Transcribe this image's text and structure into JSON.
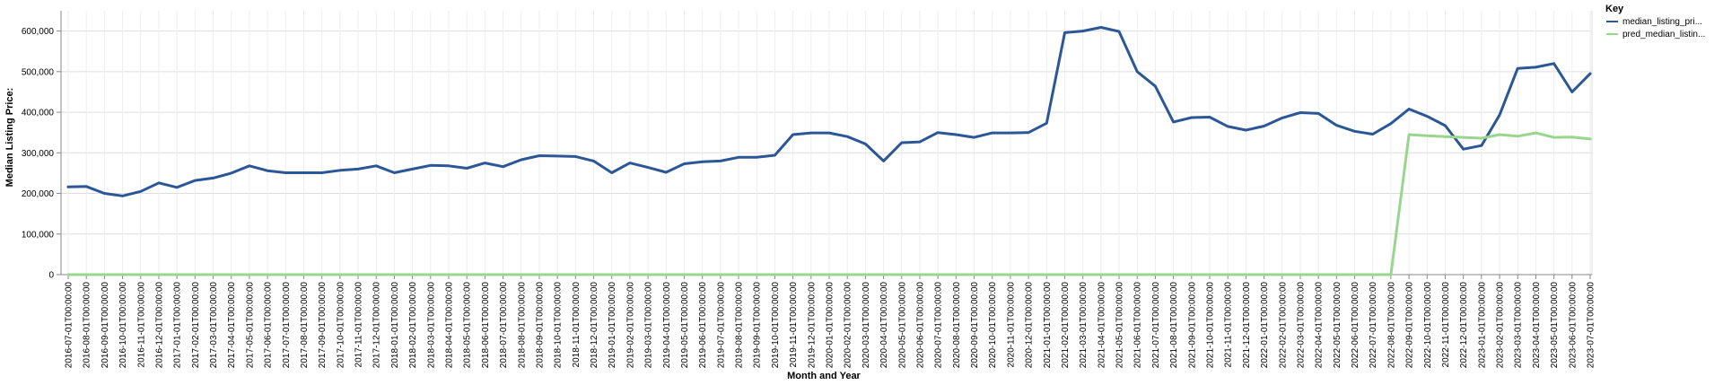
{
  "chart_data": {
    "type": "line",
    "xlabel": "Month and Year",
    "ylabel": "Median Listing Price:",
    "ylim": [
      0,
      650000
    ],
    "y_ticks": [
      "0",
      "100,000",
      "200,000",
      "300,000",
      "400,000",
      "500,000",
      "600,000"
    ],
    "y_tick_values": [
      0,
      100000,
      200000,
      300000,
      400000,
      500000,
      600000
    ],
    "grid": true,
    "legend": {
      "title": "Key",
      "placement": "top-right"
    },
    "x": [
      "2016-07-01T00:00:00",
      "2016-08-01T00:00:00",
      "2016-09-01T00:00:00",
      "2016-10-01T00:00:00",
      "2016-11-01T00:00:00",
      "2016-12-01T00:00:00",
      "2017-01-01T00:00:00",
      "2017-02-01T00:00:00",
      "2017-03-01T00:00:00",
      "2017-04-01T00:00:00",
      "2017-05-01T00:00:00",
      "2017-06-01T00:00:00",
      "2017-07-01T00:00:00",
      "2017-08-01T00:00:00",
      "2017-09-01T00:00:00",
      "2017-10-01T00:00:00",
      "2017-11-01T00:00:00",
      "2017-12-01T00:00:00",
      "2018-01-01T00:00:00",
      "2018-02-01T00:00:00",
      "2018-03-01T00:00:00",
      "2018-04-01T00:00:00",
      "2018-05-01T00:00:00",
      "2018-06-01T00:00:00",
      "2018-07-01T00:00:00",
      "2018-08-01T00:00:00",
      "2018-09-01T00:00:00",
      "2018-10-01T00:00:00",
      "2018-11-01T00:00:00",
      "2018-12-01T00:00:00",
      "2019-01-01T00:00:00",
      "2019-02-01T00:00:00",
      "2019-03-01T00:00:00",
      "2019-04-01T00:00:00",
      "2019-05-01T00:00:00",
      "2019-06-01T00:00:00",
      "2019-07-01T00:00:00",
      "2019-08-01T00:00:00",
      "2019-09-01T00:00:00",
      "2019-10-01T00:00:00",
      "2019-11-01T00:00:00",
      "2019-12-01T00:00:00",
      "2020-01-01T00:00:00",
      "2020-02-01T00:00:00",
      "2020-03-01T00:00:00",
      "2020-04-01T00:00:00",
      "2020-05-01T00:00:00",
      "2020-06-01T00:00:00",
      "2020-07-01T00:00:00",
      "2020-08-01T00:00:00",
      "2020-09-01T00:00:00",
      "2020-10-01T00:00:00",
      "2020-11-01T00:00:00",
      "2020-12-01T00:00:00",
      "2021-01-01T00:00:00",
      "2021-02-01T00:00:00",
      "2021-03-01T00:00:00",
      "2021-04-01T00:00:00",
      "2021-05-01T00:00:00",
      "2021-06-01T00:00:00",
      "2021-07-01T00:00:00",
      "2021-08-01T00:00:00",
      "2021-09-01T00:00:00",
      "2021-10-01T00:00:00",
      "2021-11-01T00:00:00",
      "2021-12-01T00:00:00",
      "2022-01-01T00:00:00",
      "2022-02-01T00:00:00",
      "2022-03-01T00:00:00",
      "2022-04-01T00:00:00",
      "2022-05-01T00:00:00",
      "2022-06-01T00:00:00",
      "2022-07-01T00:00:00",
      "2022-08-01T00:00:00",
      "2022-09-01T00:00:00",
      "2022-10-01T00:00:00",
      "2022-11-01T00:00:00",
      "2022-12-01T00:00:00",
      "2023-01-01T00:00:00",
      "2023-02-01T00:00:00",
      "2023-03-01T00:00:00",
      "2023-04-01T00:00:00",
      "2023-05-01T00:00:00",
      "2023-06-01T00:00:00",
      "2023-07-01T00:00:00"
    ],
    "series": [
      {
        "name": "median_listing_pri...",
        "color": "#2b5797",
        "values": [
          216000,
          217000,
          200000,
          194000,
          205000,
          226000,
          215000,
          232000,
          238000,
          250000,
          268000,
          256000,
          251000,
          251000,
          251000,
          257000,
          260000,
          268000,
          251000,
          260000,
          269000,
          268000,
          262000,
          275000,
          266000,
          283000,
          293000,
          292000,
          291000,
          280000,
          251000,
          275000,
          264000,
          252000,
          273000,
          278000,
          280000,
          289000,
          289000,
          294000,
          345000,
          349000,
          349000,
          340000,
          322000,
          280000,
          325000,
          327000,
          350000,
          345000,
          338000,
          349000,
          349000,
          350000,
          373000,
          596000,
          600000,
          609000,
          599000,
          500000,
          464000,
          376000,
          387000,
          388000,
          365000,
          356000,
          366000,
          386000,
          399000,
          397000,
          368000,
          353000,
          346000,
          372000,
          408000,
          390000,
          367000,
          309000,
          318000,
          393000,
          508000,
          511000,
          520000,
          450000,
          495000
        ]
      },
      {
        "name": "pred_median_listin...",
        "color": "#98d68d",
        "values": [
          0,
          0,
          0,
          0,
          0,
          0,
          0,
          0,
          0,
          0,
          0,
          0,
          0,
          0,
          0,
          0,
          0,
          0,
          0,
          0,
          0,
          0,
          0,
          0,
          0,
          0,
          0,
          0,
          0,
          0,
          0,
          0,
          0,
          0,
          0,
          0,
          0,
          0,
          0,
          0,
          0,
          0,
          0,
          0,
          0,
          0,
          0,
          0,
          0,
          0,
          0,
          0,
          0,
          0,
          0,
          0,
          0,
          0,
          0,
          0,
          0,
          0,
          0,
          0,
          0,
          0,
          0,
          0,
          0,
          0,
          0,
          0,
          0,
          0,
          345000,
          342000,
          340000,
          338000,
          336000,
          345000,
          341000,
          349000,
          338000,
          339000,
          334000
        ]
      }
    ]
  }
}
